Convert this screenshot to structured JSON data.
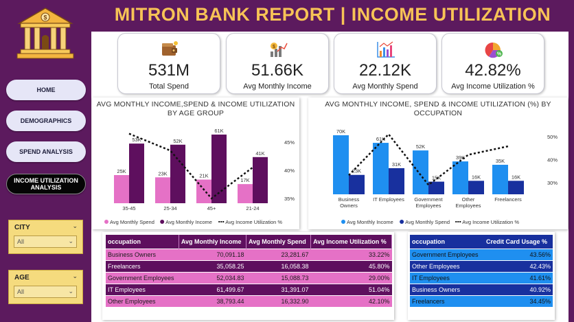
{
  "header": {
    "title": "MITRON BANK REPORT | INCOME UTILIZATION"
  },
  "nav": {
    "home": "HOME",
    "demographics": "DEMOGRAPHICS",
    "spend": "SPEND ANALYSIS",
    "income_line1": "INCOME UTILIZATION",
    "income_line2": "ANALYSIS"
  },
  "filters": {
    "city": {
      "label": "CITY",
      "value": "All"
    },
    "age": {
      "label": "AGE",
      "value": "All"
    }
  },
  "kpis": [
    {
      "value": "531M",
      "label": "Total Spend",
      "icon": "wallet-icon"
    },
    {
      "value": "51.66K",
      "label": "Avg Monthly Income",
      "icon": "money-growth-icon"
    },
    {
      "value": "22.12K",
      "label": "Avg Monthly Spend",
      "icon": "bar-chart-icon"
    },
    {
      "value": "42.82%",
      "label": "Avg Income Utilization %",
      "icon": "pie-chart-icon"
    }
  ],
  "colors": {
    "purple": "#5c1a5e",
    "gold": "#f7c356",
    "spend_pink": "#e571c6",
    "income_purple": "#5e0f5e",
    "income_blue": "#1f8ff0",
    "spend_navy": "#18309e"
  },
  "chart_data": [
    {
      "type": "bar",
      "title": "AVG MONTHLY INCOME,SPEND & INCOME UTILIZATION BY AGE GROUP",
      "categories": [
        "35-45",
        "25-34",
        "45+",
        "21-24"
      ],
      "series": [
        {
          "name": "Avg Monthly Spend",
          "values": [
            25,
            23,
            21,
            17
          ],
          "labels": [
            "25K",
            "23K",
            "21K",
            "17K"
          ]
        },
        {
          "name": "Avg Monthly Income",
          "values": [
            53,
            52,
            61,
            41
          ],
          "labels": [
            "53K",
            "52K",
            "61K",
            "41K"
          ]
        },
        {
          "name": "Avg Income Utilization %",
          "values": [
            46.5,
            43.5,
            35.0,
            40.5
          ]
        }
      ],
      "y2_ticks": [
        "45%",
        "40%",
        "35%"
      ],
      "y2lim": [
        35,
        45
      ],
      "legend": "bottom"
    },
    {
      "type": "bar",
      "title": "AVG MONTHLY INCOME, SPEND & INCOME UTILIZATION (%) BY OCCUPATION",
      "categories": [
        "Business Owners",
        "IT Employees",
        "Government Employees",
        "Other Employees",
        "Freelancers"
      ],
      "category_lines": [
        [
          "Business",
          "Owners"
        ],
        [
          "IT Employees"
        ],
        [
          "Government",
          "Employees"
        ],
        [
          "Other",
          "Employees"
        ],
        [
          "Freelancers"
        ]
      ],
      "series": [
        {
          "name": "Avg Monthly Income",
          "values": [
            70,
            61,
            52,
            39,
            35
          ],
          "labels": [
            "70K",
            "61K",
            "52K",
            "39K",
            "35K"
          ]
        },
        {
          "name": "Avg Monthly Spend",
          "values": [
            23,
            31,
            15,
            16,
            16
          ],
          "labels": [
            "23K",
            "31K",
            "15K",
            "16K",
            "16K"
          ]
        },
        {
          "name": "Avg Income Utilization %",
          "values": [
            33.22,
            51.04,
            29.0,
            42.1,
            45.8
          ]
        }
      ],
      "y2_ticks": [
        "50%",
        "40%",
        "30%"
      ],
      "y2lim": [
        30,
        50
      ],
      "legend": "bottom"
    }
  ],
  "table1": {
    "headers": [
      "occupation",
      "Avg Monthly Income",
      "Avg Monthly Spend",
      "Avg Income Utilization %"
    ],
    "rows": [
      [
        "Business Owners",
        "70,091.18",
        "23,281.67",
        "33.22%"
      ],
      [
        "Freelancers",
        "35,058.25",
        "16,058.38",
        "45.80%"
      ],
      [
        "Government Employees",
        "52,034.83",
        "15,088.73",
        "29.00%"
      ],
      [
        "IT Employees",
        "61,499.67",
        "31,391.07",
        "51.04%"
      ],
      [
        "Other Employees",
        "38,793.44",
        "16,332.90",
        "42.10%"
      ]
    ]
  },
  "table2": {
    "headers": [
      "occupation",
      "Credit Card Usage %"
    ],
    "rows": [
      [
        "Government Employees",
        "43.56%"
      ],
      [
        "Other Employees",
        "42.43%"
      ],
      [
        "IT Employees",
        "41.61%"
      ],
      [
        "Business Owners",
        "40.92%"
      ],
      [
        "Freelancers",
        "34.45%"
      ]
    ]
  }
}
